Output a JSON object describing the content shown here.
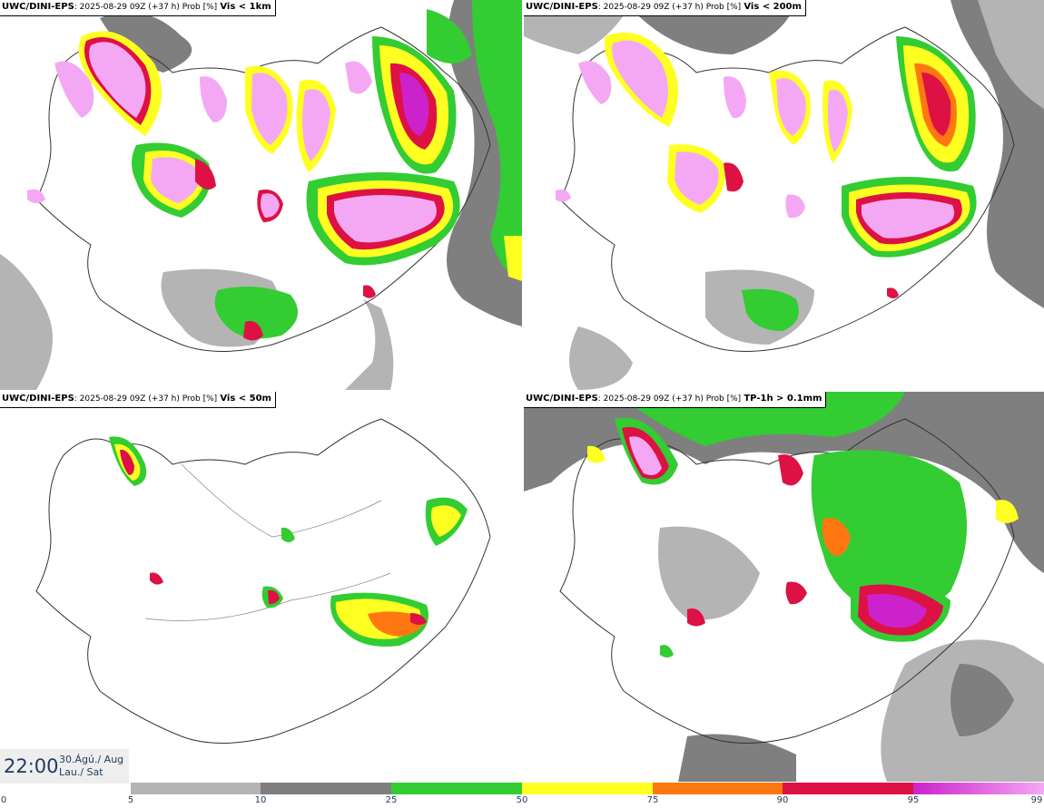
{
  "panels": [
    {
      "source": "UWC/DINI-EPS",
      "meta": ": 2025-08-29 09Z (+37 h) Prob [%]",
      "variable": "Vis < 1km"
    },
    {
      "source": "UWC/DINI-EPS",
      "meta": ": 2025-08-29 09Z (+37 h) Prob [%]",
      "variable": "Vis < 200m"
    },
    {
      "source": "UWC/DINI-EPS",
      "meta": ": 2025-08-29 09Z (+37 h) Prob [%]",
      "variable": "Vis < 50m"
    },
    {
      "source": "UWC/DINI-EPS",
      "meta": ": 2025-08-29 09Z (+37 h) Prob [%]",
      "variable": "TP-1h > 0.1mm"
    }
  ],
  "time": {
    "hour": "22:00",
    "date_line1": "30.Ágú./ Aug",
    "date_line2": "Lau./ Sat"
  },
  "colorbar": {
    "ticks": [
      "0",
      "5",
      "10",
      "25",
      "50",
      "75",
      "90",
      "95",
      "99"
    ],
    "colors": [
      "#b4b4b4",
      "#7f7f7f",
      "#33cc33",
      "#ffff22",
      "#ff7711",
      "#dd1144",
      "#cc22cc"
    ],
    "top_color": "#f4a8f4"
  }
}
